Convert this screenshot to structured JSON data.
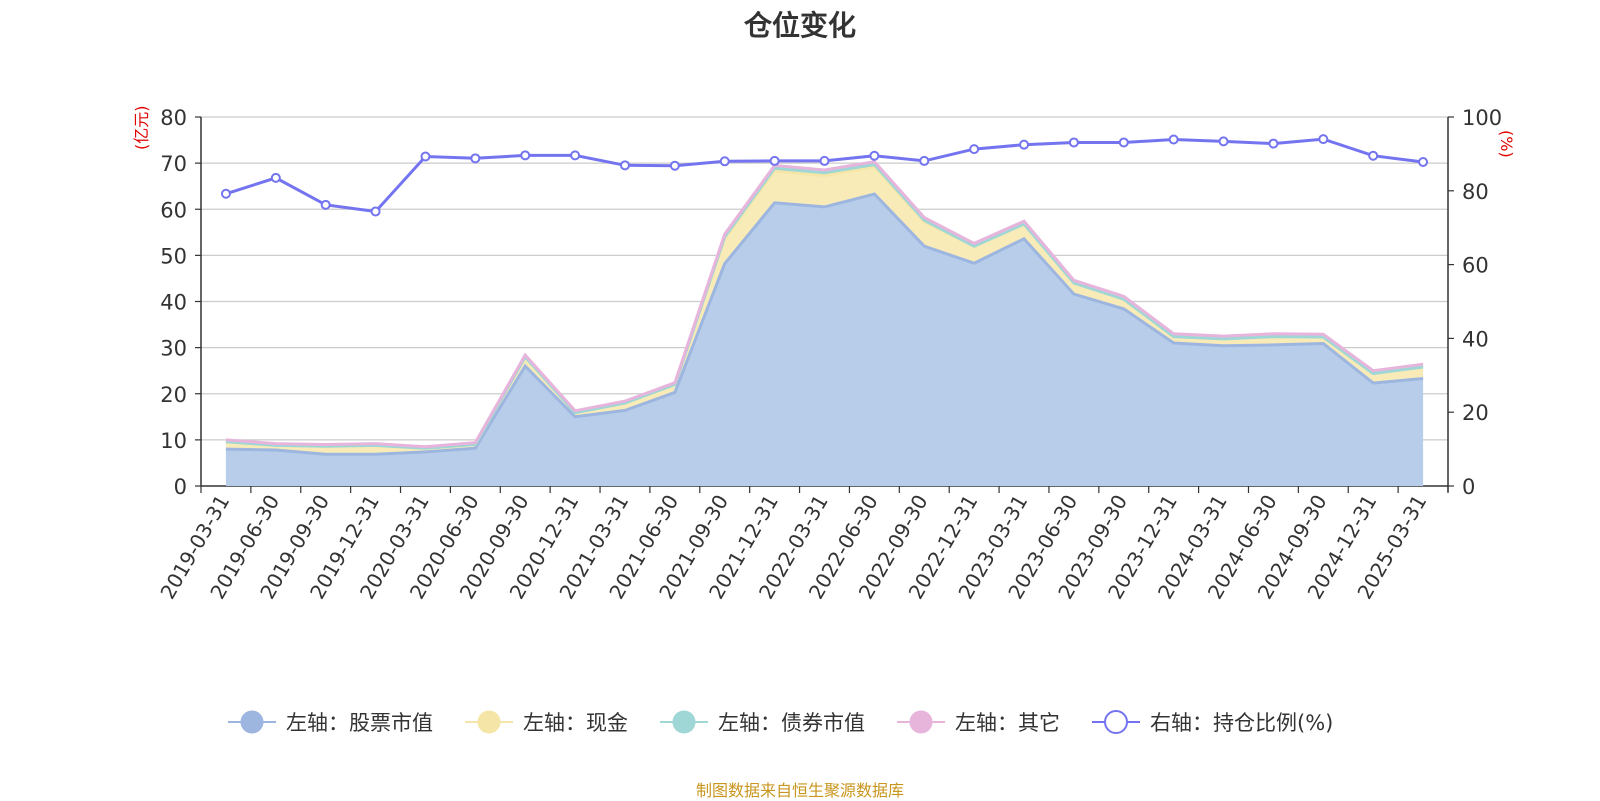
{
  "chart_data": {
    "type": "area",
    "title": "仓位变化",
    "left_axis_unit": "(亿元)",
    "right_axis_unit": "(%)",
    "ylim_left": [
      0,
      80
    ],
    "yticks_left": [
      0,
      10,
      20,
      30,
      40,
      50,
      60,
      70,
      80
    ],
    "ylim_right": [
      0,
      100
    ],
    "yticks_right": [
      0,
      20,
      40,
      60,
      80,
      100
    ],
    "categories": [
      "2019-03-31",
      "2019-06-30",
      "2019-09-30",
      "2019-12-31",
      "2020-03-31",
      "2020-06-30",
      "2020-09-30",
      "2020-12-31",
      "2021-03-31",
      "2021-06-30",
      "2021-09-30",
      "2021-12-31",
      "2022-03-31",
      "2022-06-30",
      "2022-09-30",
      "2022-12-31",
      "2023-03-31",
      "2023-06-30",
      "2023-09-30",
      "2023-12-31",
      "2024-03-31",
      "2024-06-30",
      "2024-09-30",
      "2024-12-31",
      "2025-03-31"
    ],
    "stacked_series": [
      {
        "name": "左轴：股票市值",
        "color": "#9db6e0",
        "fill": "#b7cdea",
        "values": [
          8.0,
          7.8,
          6.9,
          6.9,
          7.4,
          8.2,
          26.0,
          15.0,
          16.4,
          20.3,
          48.2,
          61.4,
          60.5,
          63.3,
          52.0,
          48.3,
          53.6,
          41.6,
          38.4,
          31.0,
          30.4,
          30.6,
          30.9,
          22.3,
          23.3
        ]
      },
      {
        "name": "左轴：现金",
        "color": "#f5e6a8",
        "fill": "#f9ebb8",
        "values": [
          1.6,
          1.0,
          1.7,
          1.9,
          0.8,
          0.8,
          2.0,
          0.9,
          1.6,
          1.7,
          5.4,
          6.9,
          6.8,
          5.9,
          5.2,
          3.7,
          3.2,
          2.4,
          2.1,
          1.4,
          1.5,
          1.8,
          1.4,
          2.1,
          2.5
        ]
      },
      {
        "name": "左轴：债券市值",
        "color": "#9fd6d6",
        "fill": "#b4e2e2",
        "values": [
          0,
          0,
          0,
          0,
          0,
          0,
          0,
          0,
          0,
          0,
          0.4,
          0.6,
          0.6,
          0.5,
          0.4,
          0,
          0,
          0,
          0,
          0,
          0,
          0,
          0,
          0,
          0
        ]
      },
      {
        "name": "左轴：其它",
        "color": "#e7b4dc",
        "fill": "#eec6e4",
        "values": [
          0.4,
          0.4,
          0.4,
          0.4,
          0.3,
          0.4,
          0.4,
          0.4,
          0.4,
          0.4,
          0.6,
          0.6,
          0.6,
          0.6,
          0.6,
          0.6,
          0.6,
          0.6,
          0.6,
          0.6,
          0.6,
          0.6,
          0.6,
          0.6,
          0.6
        ]
      }
    ],
    "line_series": {
      "name": "右轴：持仓比例(%)",
      "color": "#7474f0",
      "axis": "right",
      "values": [
        79.2,
        83.5,
        76.2,
        74.4,
        89.3,
        88.8,
        89.6,
        89.6,
        86.9,
        86.8,
        88.0,
        88.1,
        88.1,
        89.5,
        88.1,
        91.3,
        92.5,
        93.1,
        93.1,
        93.9,
        93.4,
        92.8,
        94.0,
        89.5,
        87.8
      ]
    },
    "legend_position": "bottom",
    "grid": true
  },
  "source_text": "制图数据来自恒生聚源数据库"
}
